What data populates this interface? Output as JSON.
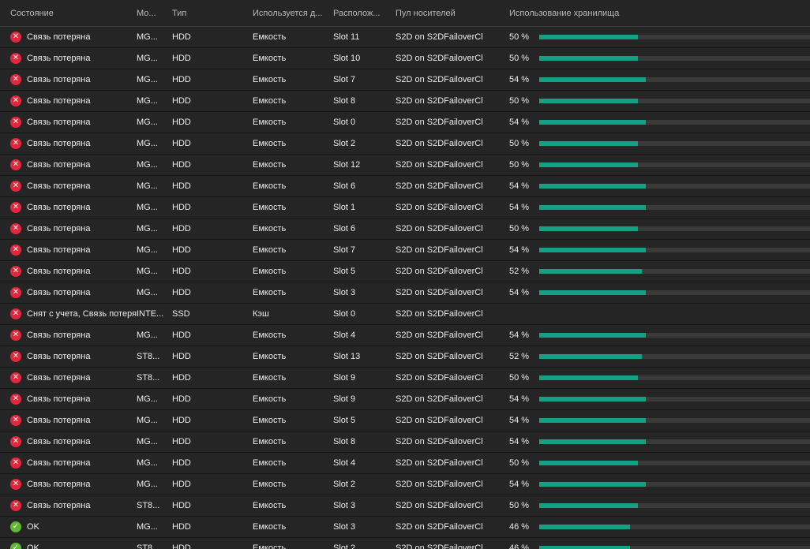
{
  "colors": {
    "error": "#e2263c",
    "ok": "#5fb832",
    "usage_bar": "#14a085",
    "usage_track": "#3a3a3a"
  },
  "columns": {
    "status": "Состояние",
    "model": "Мо...",
    "type": "Тип",
    "usage": "Используется д...",
    "location": "Располож...",
    "pool": "Пул носителей",
    "storage": "Использование хранилища"
  },
  "rows": [
    {
      "status_icon": "error-icon",
      "status": "Связь потеряна",
      "model": "MG...",
      "type": "HDD",
      "usage": "Емкость",
      "location": "Slot 11",
      "pool": "S2D on S2DFailoverCl",
      "percent_label": "50 %",
      "percent": 50
    },
    {
      "status_icon": "error-icon",
      "status": "Связь потеряна",
      "model": "MG...",
      "type": "HDD",
      "usage": "Емкость",
      "location": "Slot 10",
      "pool": "S2D on S2DFailoverCl",
      "percent_label": "50 %",
      "percent": 50
    },
    {
      "status_icon": "error-icon",
      "status": "Связь потеряна",
      "model": "MG...",
      "type": "HDD",
      "usage": "Емкость",
      "location": "Slot 7",
      "pool": "S2D on S2DFailoverCl",
      "percent_label": "54 %",
      "percent": 54
    },
    {
      "status_icon": "error-icon",
      "status": "Связь потеряна",
      "model": "MG...",
      "type": "HDD",
      "usage": "Емкость",
      "location": "Slot 8",
      "pool": "S2D on S2DFailoverCl",
      "percent_label": "50 %",
      "percent": 50
    },
    {
      "status_icon": "error-icon",
      "status": "Связь потеряна",
      "model": "MG...",
      "type": "HDD",
      "usage": "Емкость",
      "location": "Slot 0",
      "pool": "S2D on S2DFailoverCl",
      "percent_label": "54 %",
      "percent": 54
    },
    {
      "status_icon": "error-icon",
      "status": "Связь потеряна",
      "model": "MG...",
      "type": "HDD",
      "usage": "Емкость",
      "location": "Slot 2",
      "pool": "S2D on S2DFailoverCl",
      "percent_label": "50 %",
      "percent": 50
    },
    {
      "status_icon": "error-icon",
      "status": "Связь потеряна",
      "model": "MG...",
      "type": "HDD",
      "usage": "Емкость",
      "location": "Slot 12",
      "pool": "S2D on S2DFailoverCl",
      "percent_label": "50 %",
      "percent": 50
    },
    {
      "status_icon": "error-icon",
      "status": "Связь потеряна",
      "model": "MG...",
      "type": "HDD",
      "usage": "Емкость",
      "location": "Slot 6",
      "pool": "S2D on S2DFailoverCl",
      "percent_label": "54 %",
      "percent": 54
    },
    {
      "status_icon": "error-icon",
      "status": "Связь потеряна",
      "model": "MG...",
      "type": "HDD",
      "usage": "Емкость",
      "location": "Slot 1",
      "pool": "S2D on S2DFailoverCl",
      "percent_label": "54 %",
      "percent": 54
    },
    {
      "status_icon": "error-icon",
      "status": "Связь потеряна",
      "model": "MG...",
      "type": "HDD",
      "usage": "Емкость",
      "location": "Slot 6",
      "pool": "S2D on S2DFailoverCl",
      "percent_label": "50 %",
      "percent": 50
    },
    {
      "status_icon": "error-icon",
      "status": "Связь потеряна",
      "model": "MG...",
      "type": "HDD",
      "usage": "Емкость",
      "location": "Slot 7",
      "pool": "S2D on S2DFailoverCl",
      "percent_label": "54 %",
      "percent": 54
    },
    {
      "status_icon": "error-icon",
      "status": "Связь потеряна",
      "model": "MG...",
      "type": "HDD",
      "usage": "Емкость",
      "location": "Slot 5",
      "pool": "S2D on S2DFailoverCl",
      "percent_label": "52 %",
      "percent": 52
    },
    {
      "status_icon": "error-icon",
      "status": "Связь потеряна",
      "model": "MG...",
      "type": "HDD",
      "usage": "Емкость",
      "location": "Slot 3",
      "pool": "S2D on S2DFailoverCl",
      "percent_label": "54 %",
      "percent": 54
    },
    {
      "status_icon": "error-icon",
      "status": "Снят с учета, Связь потеряна",
      "model": "INTE...",
      "type": "SSD",
      "usage": "Кэш",
      "location": "Slot 0",
      "pool": "S2D on S2DFailoverCl",
      "percent_label": "",
      "percent": null
    },
    {
      "status_icon": "error-icon",
      "status": "Связь потеряна",
      "model": "MG...",
      "type": "HDD",
      "usage": "Емкость",
      "location": "Slot 4",
      "pool": "S2D on S2DFailoverCl",
      "percent_label": "54 %",
      "percent": 54
    },
    {
      "status_icon": "error-icon",
      "status": "Связь потеряна",
      "model": "ST8...",
      "type": "HDD",
      "usage": "Емкость",
      "location": "Slot 13",
      "pool": "S2D on S2DFailoverCl",
      "percent_label": "52 %",
      "percent": 52
    },
    {
      "status_icon": "error-icon",
      "status": "Связь потеряна",
      "model": "ST8...",
      "type": "HDD",
      "usage": "Емкость",
      "location": "Slot 9",
      "pool": "S2D on S2DFailoverCl",
      "percent_label": "50 %",
      "percent": 50
    },
    {
      "status_icon": "error-icon",
      "status": "Связь потеряна",
      "model": "MG...",
      "type": "HDD",
      "usage": "Емкость",
      "location": "Slot 9",
      "pool": "S2D on S2DFailoverCl",
      "percent_label": "54 %",
      "percent": 54
    },
    {
      "status_icon": "error-icon",
      "status": "Связь потеряна",
      "model": "MG...",
      "type": "HDD",
      "usage": "Емкость",
      "location": "Slot 5",
      "pool": "S2D on S2DFailoverCl",
      "percent_label": "54 %",
      "percent": 54
    },
    {
      "status_icon": "error-icon",
      "status": "Связь потеряна",
      "model": "MG...",
      "type": "HDD",
      "usage": "Емкость",
      "location": "Slot 8",
      "pool": "S2D on S2DFailoverCl",
      "percent_label": "54 %",
      "percent": 54
    },
    {
      "status_icon": "error-icon",
      "status": "Связь потеряна",
      "model": "MG...",
      "type": "HDD",
      "usage": "Емкость",
      "location": "Slot 4",
      "pool": "S2D on S2DFailoverCl",
      "percent_label": "50 %",
      "percent": 50
    },
    {
      "status_icon": "error-icon",
      "status": "Связь потеряна",
      "model": "MG...",
      "type": "HDD",
      "usage": "Емкость",
      "location": "Slot 2",
      "pool": "S2D on S2DFailoverCl",
      "percent_label": "54 %",
      "percent": 54
    },
    {
      "status_icon": "error-icon",
      "status": "Связь потеряна",
      "model": "ST8...",
      "type": "HDD",
      "usage": "Емкость",
      "location": "Slot 3",
      "pool": "S2D on S2DFailoverCl",
      "percent_label": "50 %",
      "percent": 50
    },
    {
      "status_icon": "ok-icon",
      "status": "OK",
      "model": "MG...",
      "type": "HDD",
      "usage": "Емкость",
      "location": "Slot 3",
      "pool": "S2D on S2DFailoverCl",
      "percent_label": "46 %",
      "percent": 46
    },
    {
      "status_icon": "ok-icon",
      "status": "OK",
      "model": "ST8...",
      "type": "HDD",
      "usage": "Емкость",
      "location": "Slot 2",
      "pool": "S2D on S2DFailoverCl",
      "percent_label": "46 %",
      "percent": 46
    }
  ]
}
